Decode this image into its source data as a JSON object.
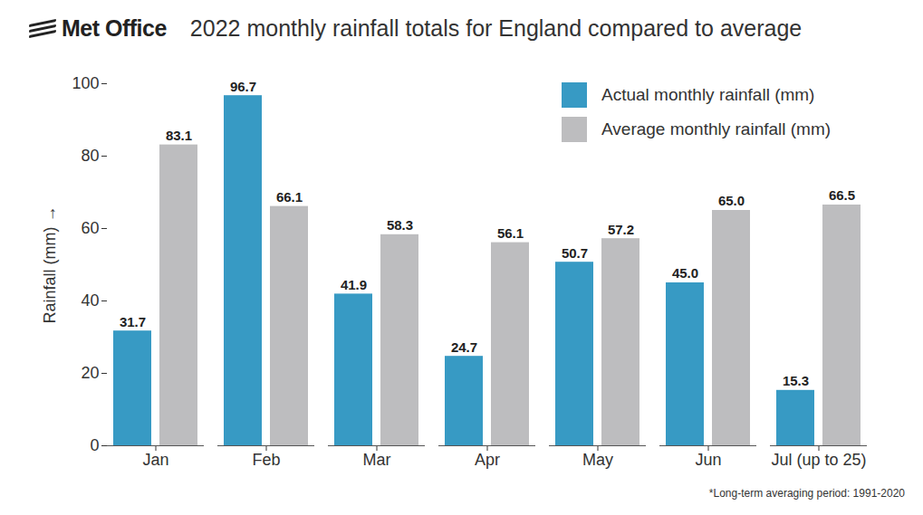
{
  "chart_data": {
    "type": "bar",
    "logo": "Met Office",
    "title": "2022 monthly rainfall totals for England compared to average",
    "footnote": "*Long-term averaging period: 1991-2020",
    "y_label": "Rainfall (mm)",
    "categories": [
      "Jan",
      "Feb",
      "Mar",
      "Apr",
      "May",
      "Jun",
      "Jul (up to 25)"
    ],
    "series": [
      {
        "name": "Actual monthly rainfall (mm)",
        "color": "#379ac4",
        "values": [
          31.7,
          96.7,
          41.9,
          24.7,
          50.7,
          45.0,
          15.3
        ],
        "value_labels": [
          "31.7",
          "96.7",
          "41.9",
          "24.7",
          "50.7",
          "45.0",
          "15.3"
        ]
      },
      {
        "name": "Average monthly rainfall (mm)",
        "color": "#bdbdbf",
        "values": [
          83.1,
          66.1,
          58.3,
          56.1,
          57.2,
          65.0,
          66.5
        ],
        "value_labels": [
          "83.1",
          "66.1",
          "58.3",
          "56.1",
          "57.2",
          "65.0",
          "66.5"
        ]
      }
    ],
    "ylim": [
      0,
      100
    ],
    "yticks": [
      0,
      20,
      40,
      60,
      80,
      100
    ],
    "grid": false,
    "legend": "top-right",
    "data_labels": true
  }
}
